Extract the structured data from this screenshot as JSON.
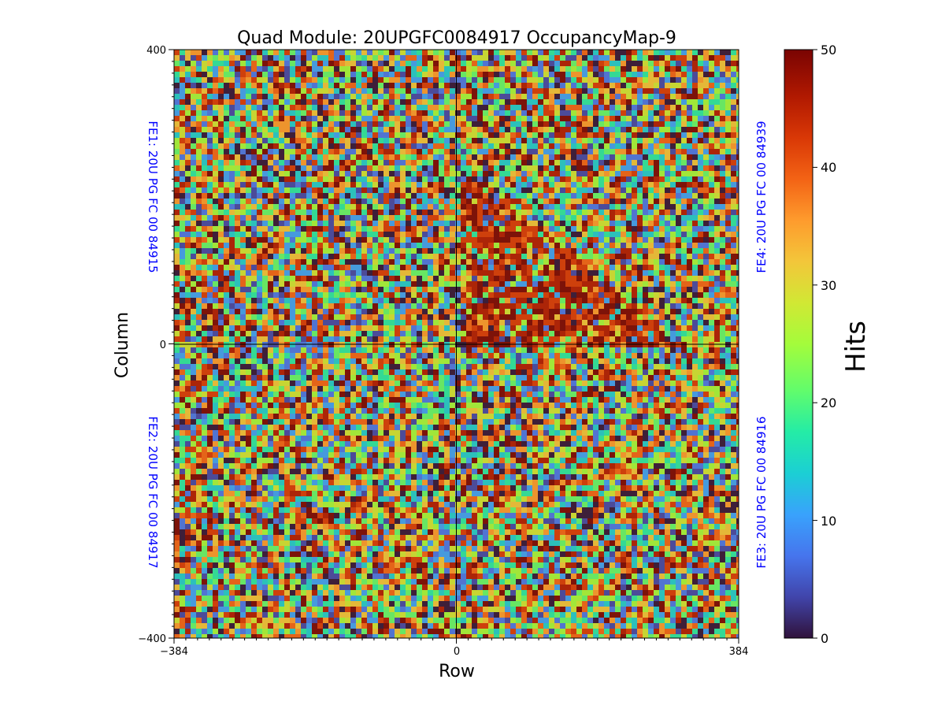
{
  "chart_data": {
    "type": "heatmap",
    "title": "Quad Module: 20UPGFC0084917 OccupancyMap-9",
    "xlabel": "Row",
    "ylabel": "Column",
    "xlim": [
      -384,
      384
    ],
    "ylim": [
      -400,
      400
    ],
    "x_ticks": [
      "−384",
      "0",
      "384"
    ],
    "y_ticks": [
      "400",
      "0",
      "−400"
    ],
    "colorbar": {
      "label": "Hits",
      "range": [
        0,
        50
      ],
      "ticks": [
        "0",
        "10",
        "20",
        "30",
        "40",
        "50"
      ],
      "colormap": "turbo"
    },
    "chip_labels": {
      "fe1": "FE1: 20U PG FC 00 84915",
      "fe2": "FE2: 20U PG FC 00 84917",
      "fe3": "FE3: 20U PG FC 00 84916",
      "fe4": "FE4: 20U PG FC 00 84939"
    },
    "chip_label_color": "#0000ff",
    "grid": false,
    "quadrant_divider_lines": true
  }
}
